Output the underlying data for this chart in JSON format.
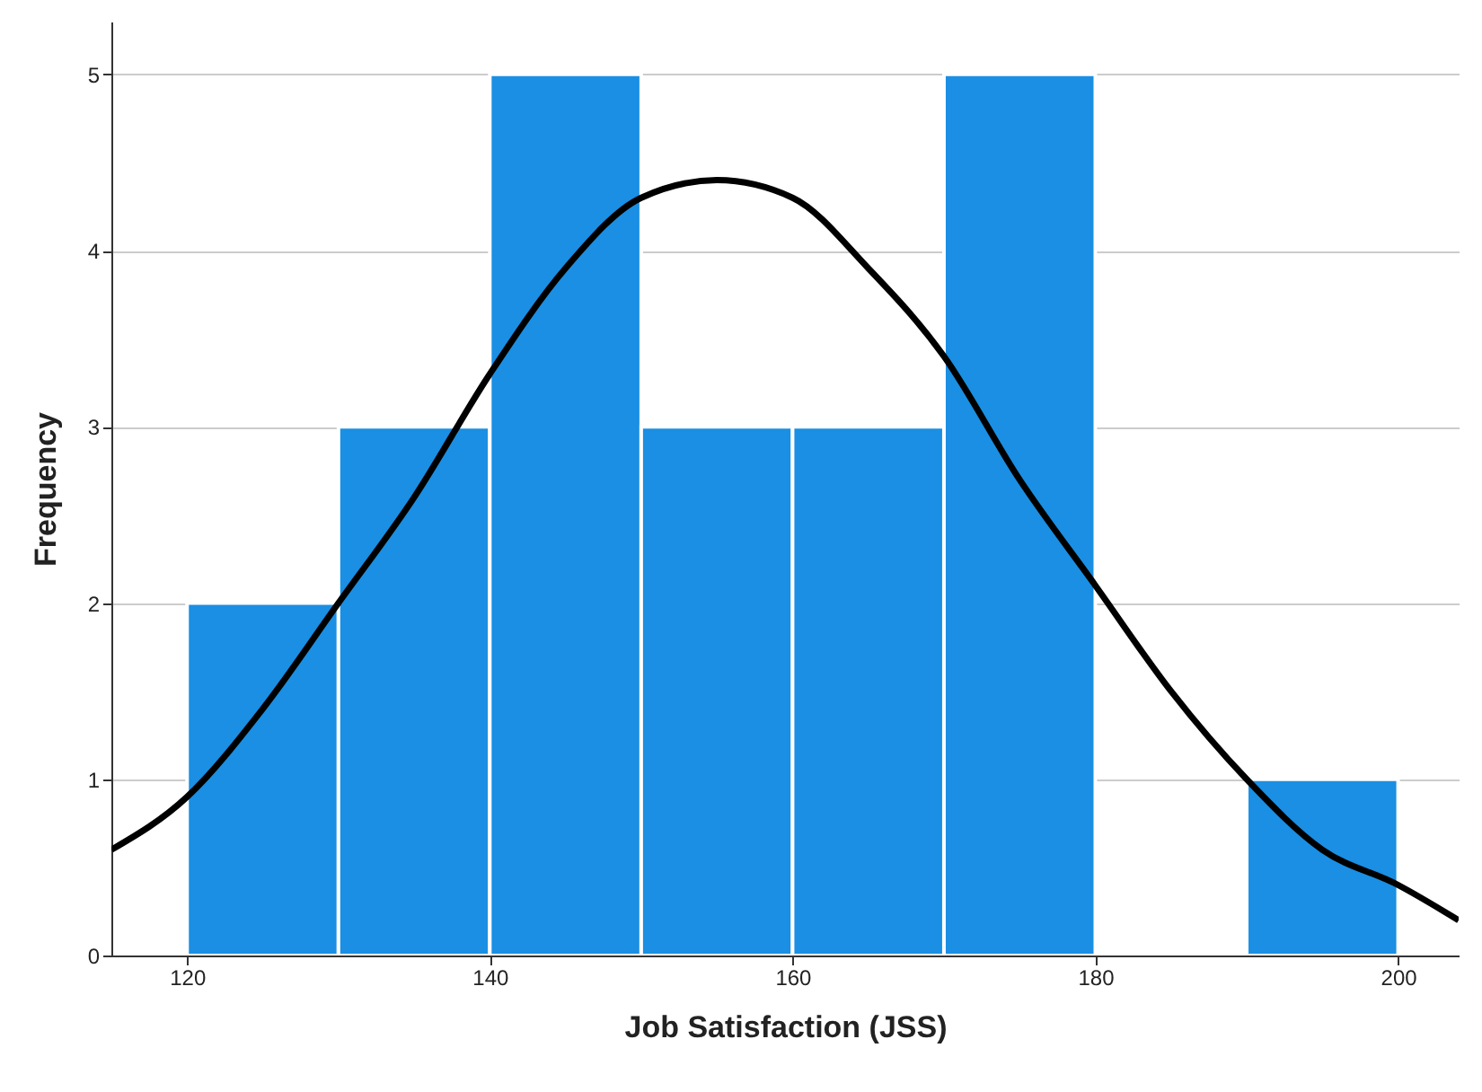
{
  "chart_data": {
    "type": "histogram",
    "xlabel": "Job Satisfaction (JSS)",
    "ylabel": "Frequency",
    "bins": [
      120,
      130,
      140,
      150,
      160,
      170,
      180,
      190,
      200
    ],
    "values": [
      2,
      3,
      5,
      3,
      3,
      5,
      0,
      1
    ],
    "color": "#1a8fe3",
    "series": [
      {
        "type": "line",
        "color": "#000000",
        "x": [
          115,
          120,
          125,
          130,
          135,
          140,
          145,
          150,
          155,
          160,
          165,
          170,
          175,
          180,
          185,
          190,
          195,
          200,
          204
        ],
        "values": [
          0.6,
          0.9,
          1.4,
          2.0,
          2.6,
          3.3,
          3.9,
          4.3,
          4.4,
          4.3,
          3.9,
          3.4,
          2.7,
          2.1,
          1.5,
          1.0,
          0.6,
          0.4,
          0.2
        ]
      }
    ],
    "xlim": [
      115,
      204
    ],
    "xticks": [
      120,
      140,
      160,
      180,
      200
    ],
    "ylim": [
      0,
      5.3
    ],
    "yticks": [
      0,
      1,
      2,
      3,
      4,
      5
    ],
    "grid": "y"
  }
}
